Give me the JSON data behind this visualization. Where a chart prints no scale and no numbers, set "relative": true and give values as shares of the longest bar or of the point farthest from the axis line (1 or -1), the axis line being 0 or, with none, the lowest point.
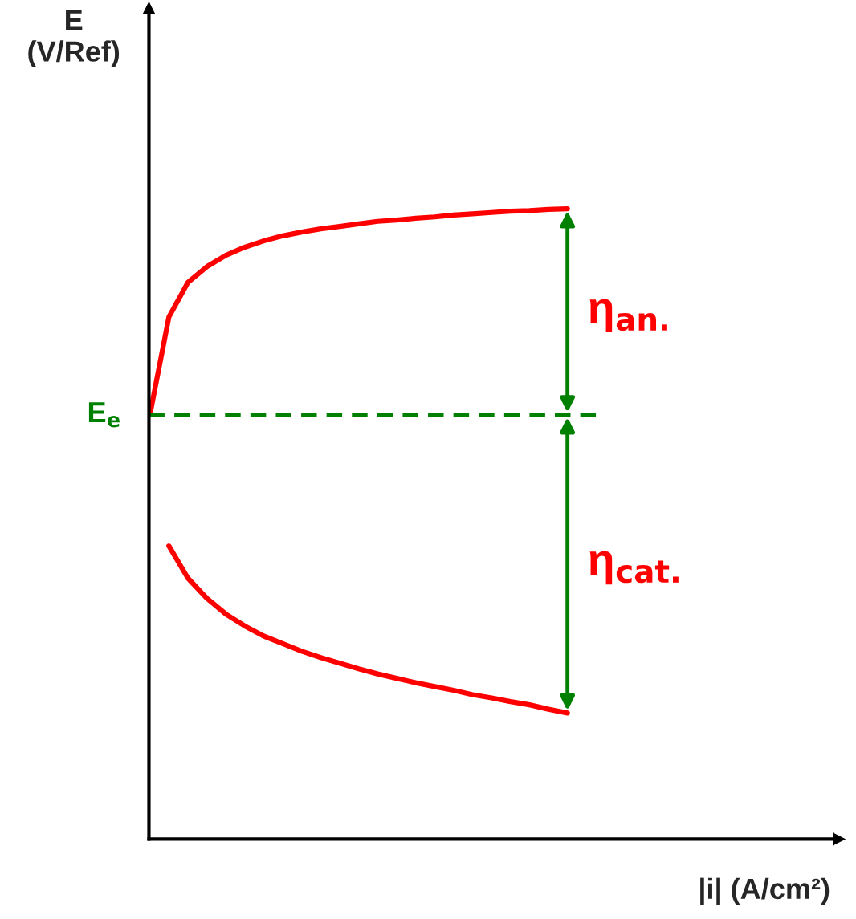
{
  "chart_data": {
    "type": "line",
    "relative": true,
    "xlabel": "|i| (A/cm²)",
    "ylabel": "E\n(V/Ref)",
    "categories": [
      null,
      null,
      null,
      null,
      null,
      null,
      null,
      null,
      null,
      null,
      null,
      null,
      null,
      null,
      null,
      null,
      null,
      null,
      null,
      null,
      null,
      null,
      null,
      null,
      null,
      null,
      null,
      null,
      null,
      null,
      null,
      null,
      null,
      null,
      null,
      null,
      null
    ],
    "series": [
      {
        "color": "#ff0000",
        "values": [
          0.673,
          0.828,
          0.883,
          0.908,
          0.926,
          0.939,
          0.949,
          0.957,
          0.963,
          0.968,
          0.972,
          0.976,
          0.98,
          0.982,
          0.985,
          0.987,
          0.99,
          0.992,
          0.994,
          0.996,
          0.997,
          0.999,
          1.0,
          null,
          null,
          null,
          null,
          null,
          null,
          null,
          null,
          null,
          null,
          null,
          null,
          null,
          null
        ]
      },
      {
        "color": "#ff0000",
        "values": [
          null,
          0.465,
          0.414,
          0.382,
          0.357,
          0.338,
          0.322,
          0.31,
          0.298,
          0.288,
          0.279,
          0.27,
          0.262,
          0.255,
          0.248,
          0.242,
          0.236,
          0.229,
          0.224,
          0.218,
          0.213,
          0.206,
          0.2,
          null,
          null,
          null,
          null,
          null,
          null,
          null,
          null,
          null,
          null,
          null,
          null,
          null,
          null
        ]
      }
    ],
    "ref_lines": [
      {
        "axis": "y",
        "value": 0.673,
        "label": "E$_{e}$",
        "color": "#008000",
        "line_style": "dashed"
      }
    ],
    "annotations": [
      "η$_{an.}$",
      "η$_{cat.}$"
    ],
    "legend": false
  }
}
